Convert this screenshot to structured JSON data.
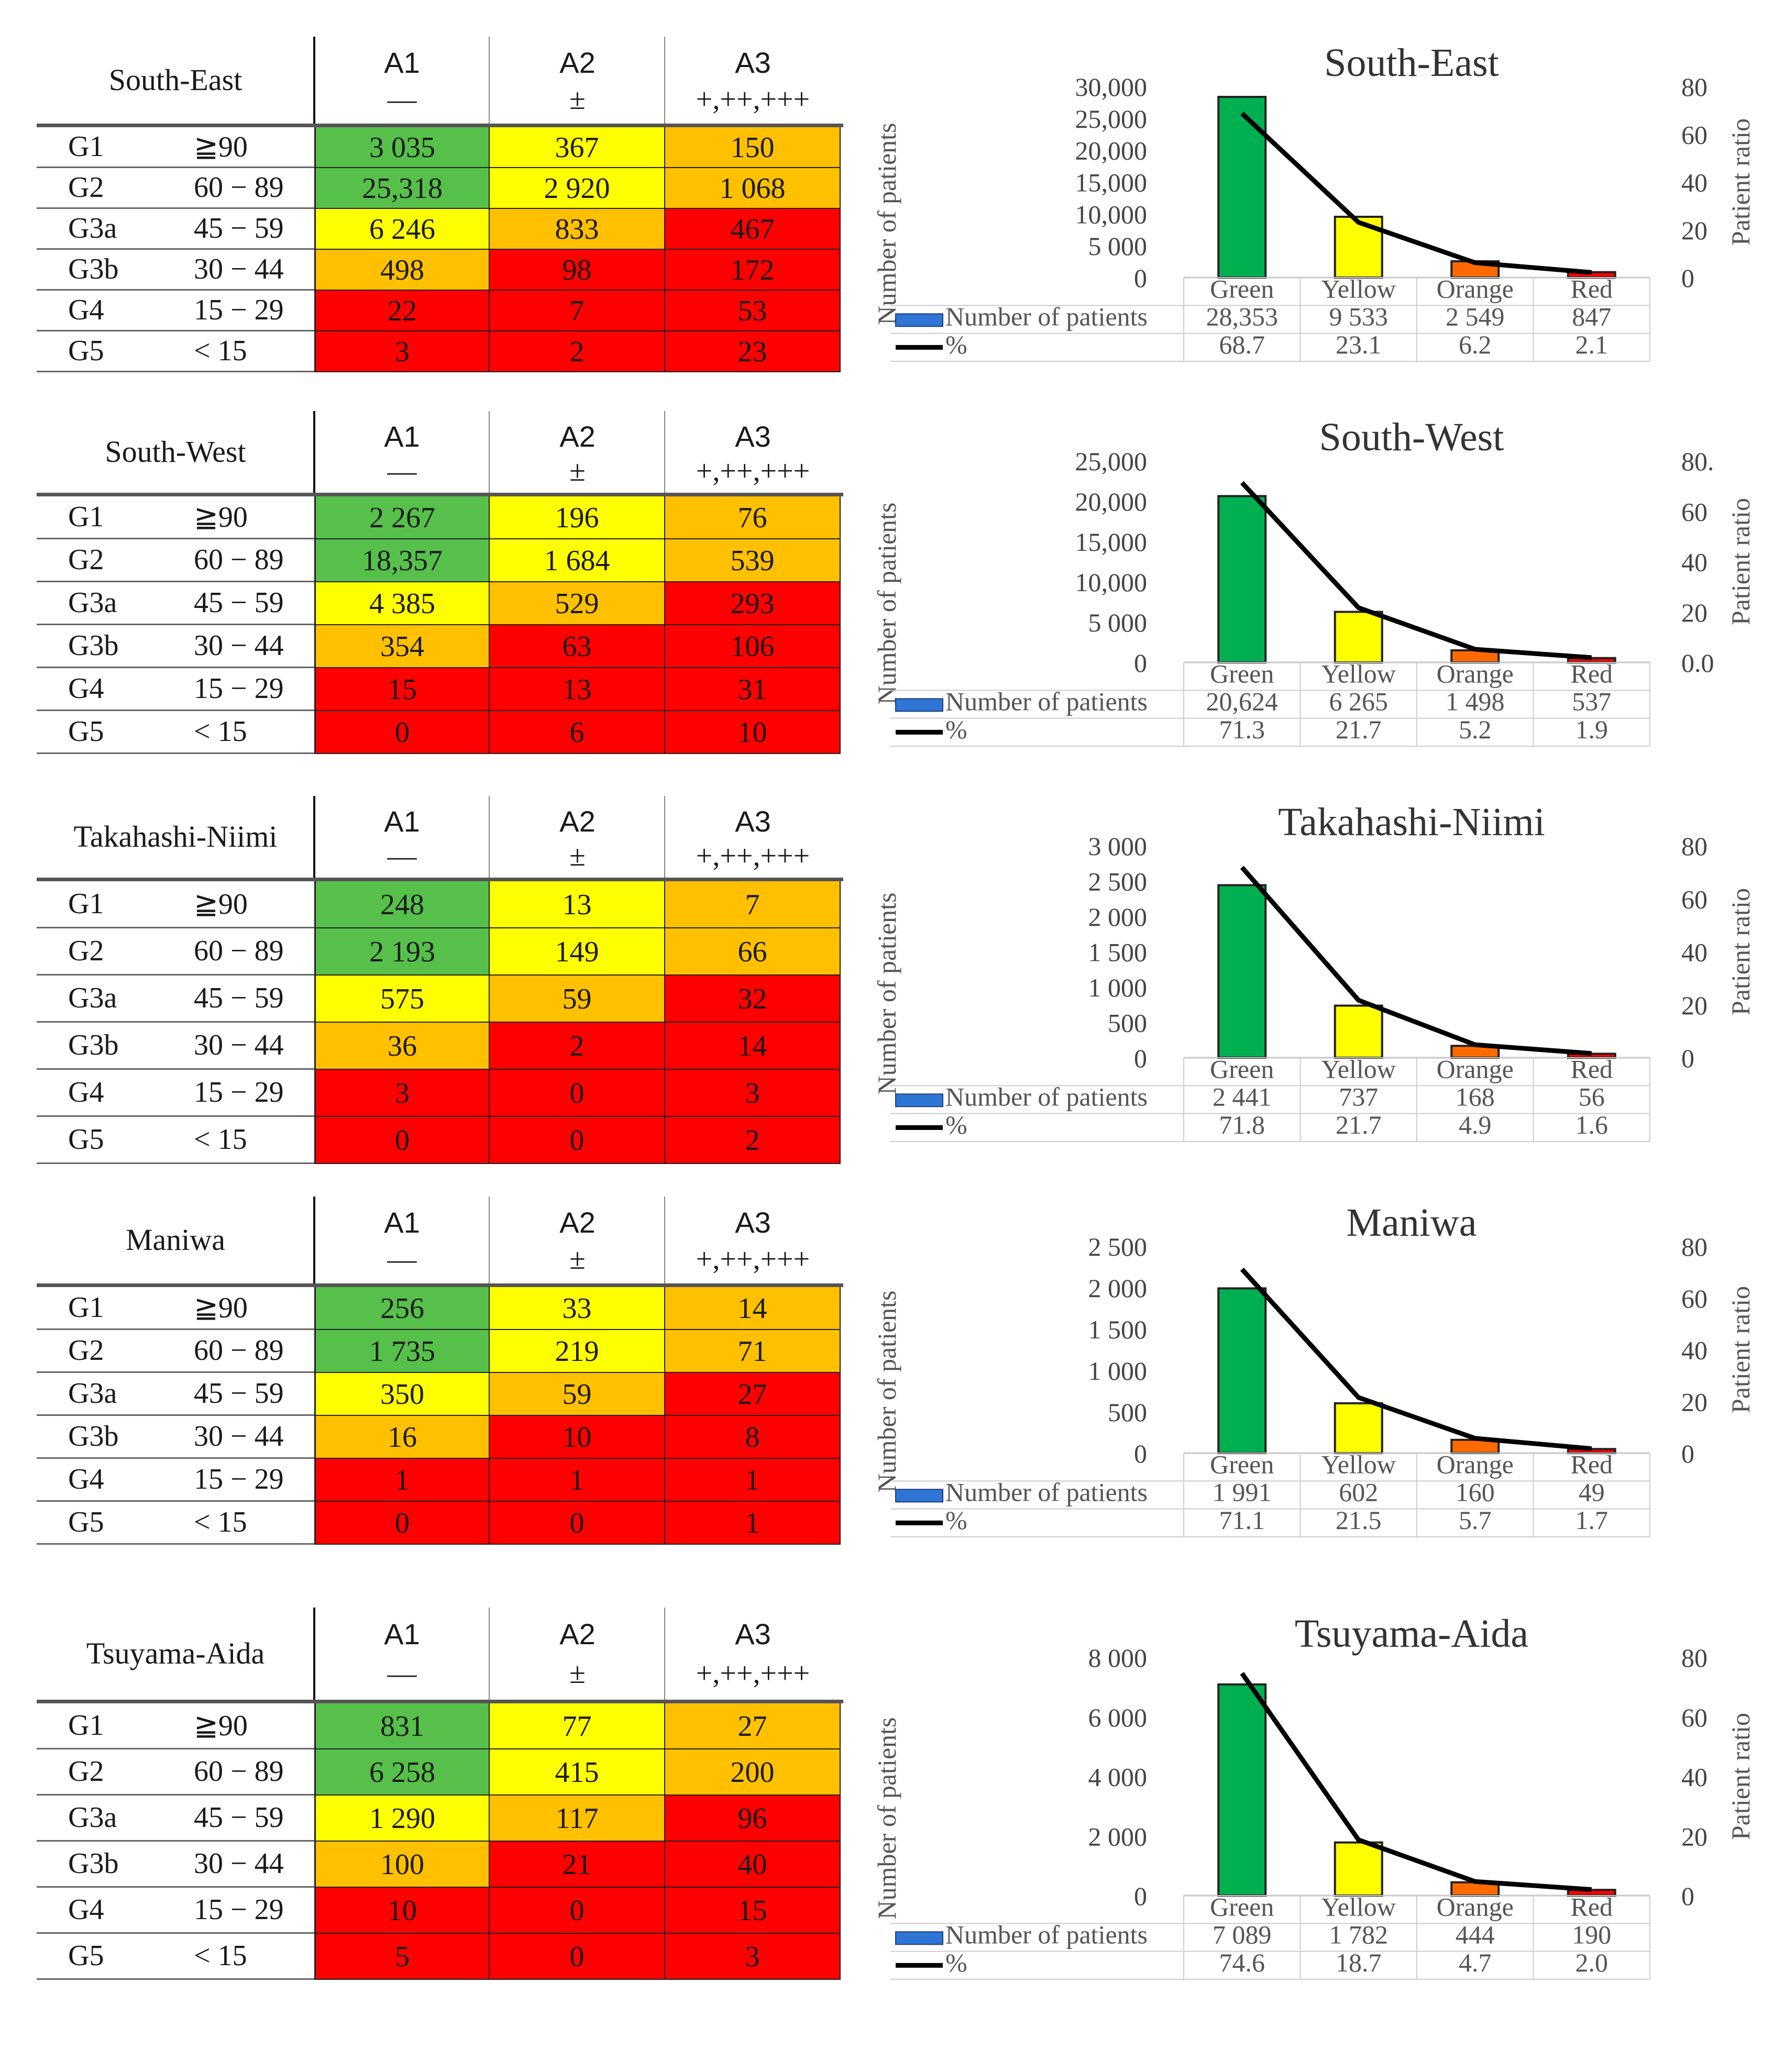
{
  "colors": {
    "green": "#56c04a",
    "yellow": "#ffff00",
    "orange": "#ffc000",
    "red": "#ff0000",
    "bar_green": "#00b050",
    "bar_yellow": "#ffff00",
    "bar_orange": "#ff6a00",
    "bar_red": "#ff0000",
    "legend_blue": "#2e75d6"
  },
  "table_header": {
    "col_heads": [
      "A1",
      "A2",
      "A3"
    ],
    "col_subs": [
      "—",
      "±",
      "+,++,+++"
    ]
  },
  "row_labels": [
    {
      "g": "G1",
      "r": "≧90"
    },
    {
      "g": "G2",
      "r": "60 − 89"
    },
    {
      "g": "G3a",
      "r": "45 − 59"
    },
    {
      "g": "G3b",
      "r": "30 − 44"
    },
    {
      "g": "G4",
      "r": "15 − 29"
    },
    {
      "g": "G5",
      "r": "< 15"
    }
  ],
  "cell_colors": [
    [
      "green",
      "yellow",
      "orange"
    ],
    [
      "green",
      "yellow",
      "orange"
    ],
    [
      "yellow",
      "orange",
      "red"
    ],
    [
      "orange",
      "red",
      "red"
    ],
    [
      "red",
      "red",
      "red"
    ],
    [
      "red",
      "red",
      "red"
    ]
  ],
  "regions": [
    {
      "name": "South-East",
      "cells": [
        [
          "3 035",
          "367",
          "150"
        ],
        [
          "25,318",
          "2 920",
          "1 068"
        ],
        [
          "6 246",
          "833",
          "467"
        ],
        [
          "498",
          "98",
          "172"
        ],
        [
          "22",
          "7",
          "53"
        ],
        [
          "3",
          "2",
          "23"
        ]
      ]
    },
    {
      "name": "South-West",
      "cells": [
        [
          "2 267",
          "196",
          "76"
        ],
        [
          "18,357",
          "1 684",
          "539"
        ],
        [
          "4 385",
          "529",
          "293"
        ],
        [
          "354",
          "63",
          "106"
        ],
        [
          "15",
          "13",
          "31"
        ],
        [
          "0",
          "6",
          "10"
        ]
      ]
    },
    {
      "name": "Takahashi-Niimi",
      "cells": [
        [
          "248",
          "13",
          "7"
        ],
        [
          "2 193",
          "149",
          "66"
        ],
        [
          "575",
          "59",
          "32"
        ],
        [
          "36",
          "2",
          "14"
        ],
        [
          "3",
          "0",
          "3"
        ],
        [
          "0",
          "0",
          "2"
        ]
      ]
    },
    {
      "name": "Maniwa",
      "cells": [
        [
          "256",
          "33",
          "14"
        ],
        [
          "1 735",
          "219",
          "71"
        ],
        [
          "350",
          "59",
          "27"
        ],
        [
          "16",
          "10",
          "8"
        ],
        [
          "1",
          "1",
          "1"
        ],
        [
          "0",
          "0",
          "1"
        ]
      ]
    },
    {
      "name": "Tsuyama-Aida",
      "cells": [
        [
          "831",
          "77",
          "27"
        ],
        [
          "6 258",
          "415",
          "200"
        ],
        [
          "1 290",
          "117",
          "96"
        ],
        [
          "100",
          "21",
          "40"
        ],
        [
          "10",
          "0",
          "15"
        ],
        [
          "5",
          "0",
          "3"
        ]
      ]
    }
  ],
  "chart_common": {
    "ylabel": "Number of patients",
    "y2label": "Patient ratio",
    "legend_bar": "Number of patients",
    "legend_line": "%"
  },
  "chart_data": [
    {
      "type": "bar",
      "title": "South-East",
      "categories": [
        "Green",
        "Yellow",
        "Orange",
        "Red"
      ],
      "series": [
        {
          "name": "Number of patients",
          "values": [
            28353,
            9533,
            2549,
            847
          ],
          "labels": [
            "28,353",
            "9 533",
            "2 549",
            "847"
          ]
        },
        {
          "name": "%",
          "values": [
            68.7,
            23.1,
            6.2,
            2.1
          ],
          "labels": [
            "68.7",
            "23.1",
            "6.2",
            "2.1"
          ]
        }
      ],
      "ylim": [
        0,
        30000
      ],
      "yticks": [
        "0",
        "5 000",
        "10,000",
        "15,000",
        "20,000",
        "25,000",
        "30,000"
      ],
      "y2lim": [
        0,
        80
      ],
      "y2ticks": [
        "0",
        "20",
        "40",
        "60",
        "80"
      ]
    },
    {
      "type": "bar",
      "title": "South-West",
      "categories": [
        "Green",
        "Yellow",
        "Orange",
        "Red"
      ],
      "series": [
        {
          "name": "Number of patients",
          "values": [
            20624,
            6265,
            1498,
            537
          ],
          "labels": [
            "20,624",
            "6 265",
            "1 498",
            "537"
          ]
        },
        {
          "name": "%",
          "values": [
            71.3,
            21.7,
            5.2,
            1.9
          ],
          "labels": [
            "71.3",
            "21.7",
            "5.2",
            "1.9"
          ]
        }
      ],
      "ylim": [
        0,
        25000
      ],
      "yticks": [
        "0",
        "5 000",
        "10,000",
        "15,000",
        "20,000",
        "25,000"
      ],
      "y2lim": [
        0,
        80
      ],
      "y2ticks": [
        "0.0",
        "20",
        "40",
        "60",
        "80."
      ]
    },
    {
      "type": "bar",
      "title": "Takahashi-Niimi",
      "categories": [
        "Green",
        "Yellow",
        "Orange",
        "Red"
      ],
      "series": [
        {
          "name": "Number of patients",
          "values": [
            2441,
            737,
            168,
            56
          ],
          "labels": [
            "2 441",
            "737",
            "168",
            "56"
          ]
        },
        {
          "name": "%",
          "values": [
            71.8,
            21.7,
            4.9,
            1.6
          ],
          "labels": [
            "71.8",
            "21.7",
            "4.9",
            "1.6"
          ]
        }
      ],
      "ylim": [
        0,
        3000
      ],
      "yticks": [
        "0",
        "500",
        "1 000",
        "1 500",
        "2 000",
        "2 500",
        "3 000"
      ],
      "y2lim": [
        0,
        80
      ],
      "y2ticks": [
        "0",
        "20",
        "40",
        "60",
        "80"
      ]
    },
    {
      "type": "bar",
      "title": "Maniwa",
      "categories": [
        "Green",
        "Yellow",
        "Orange",
        "Red"
      ],
      "series": [
        {
          "name": "Number of patients",
          "values": [
            1991,
            602,
            160,
            49
          ],
          "labels": [
            "1 991",
            "602",
            "160",
            "49"
          ]
        },
        {
          "name": "%",
          "values": [
            71.1,
            21.5,
            5.7,
            1.7
          ],
          "labels": [
            "71.1",
            "21.5",
            "5.7",
            "1.7"
          ]
        }
      ],
      "ylim": [
        0,
        2500
      ],
      "yticks": [
        "0",
        "500",
        "1 000",
        "1 500",
        "2 000",
        "2 500"
      ],
      "y2lim": [
        0,
        80
      ],
      "y2ticks": [
        "0",
        "20",
        "40",
        "60",
        "80"
      ]
    },
    {
      "type": "bar",
      "title": "Tsuyama-Aida",
      "categories": [
        "Green",
        "Yellow",
        "Orange",
        "Red"
      ],
      "series": [
        {
          "name": "Number of patients",
          "values": [
            7089,
            1782,
            444,
            190
          ],
          "labels": [
            "7 089",
            "1 782",
            "444",
            "190"
          ]
        },
        {
          "name": "%",
          "values": [
            74.6,
            18.7,
            4.7,
            2.0
          ],
          "labels": [
            "74.6",
            "18.7",
            "4.7",
            "2.0"
          ]
        }
      ],
      "ylim": [
        0,
        8000
      ],
      "yticks": [
        "0",
        "2 000",
        "4 000",
        "6 000",
        "8 000"
      ],
      "y2lim": [
        0,
        80
      ],
      "y2ticks": [
        "0",
        "20",
        "40",
        "60",
        "80"
      ]
    }
  ]
}
